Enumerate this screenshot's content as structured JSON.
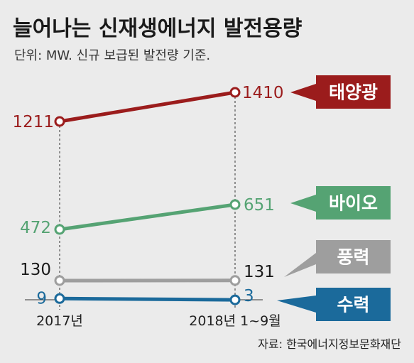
{
  "chart_data": {
    "type": "line",
    "title": "늘어나는 신재생에너지 발전용량",
    "subtitle": "단위: MW. 신규 보급된 발전량 기준.",
    "categories": [
      "2017년",
      "2018년 1~9월"
    ],
    "series": [
      {
        "name": "태양광",
        "values": [
          1211,
          1410
        ],
        "color": "#9b1c1c"
      },
      {
        "name": "바이오",
        "values": [
          472,
          651
        ],
        "color": "#55a373"
      },
      {
        "name": "풍력",
        "values": [
          130,
          131
        ],
        "color": "#9e9e9e"
      },
      {
        "name": "수력",
        "values": [
          9,
          3
        ],
        "color": "#1b6a9b"
      }
    ],
    "value_labels": [
      [
        "1211",
        "1410"
      ],
      [
        "472",
        "651"
      ],
      [
        "130",
        "131"
      ],
      [
        "9",
        "3"
      ]
    ],
    "source": "자료: 한국에너지정보문화재단"
  }
}
